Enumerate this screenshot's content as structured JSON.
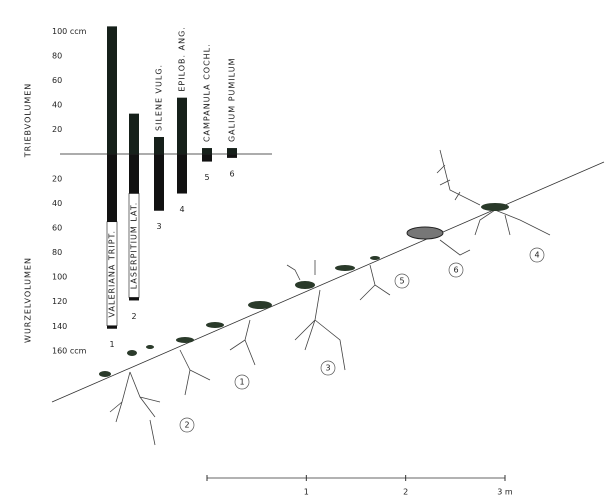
{
  "chart_data": {
    "type": "bar",
    "categories": [
      "VALERIANA TRIPT.",
      "LASERPITIUM LAT.",
      "SILENE VULG.",
      "EPILOB. ANG.",
      "CAMPANULA COCHL.",
      "GALIUM PUMILUM"
    ],
    "category_numbers": [
      "1",
      "2",
      "3",
      "4",
      "5",
      "6"
    ],
    "series": [
      {
        "name": "TRIEBVOLUMEN",
        "color": "#16201a",
        "values": [
          104,
          33,
          14,
          46,
          5,
          5
        ]
      },
      {
        "name": "WURZELVOLUMEN",
        "color": "#111111",
        "values": [
          -142,
          -119,
          -46,
          -32,
          -6,
          -3
        ]
      }
    ],
    "ylim": [
      -165,
      110
    ],
    "yticks": [
      {
        "value": 100,
        "label": "100 ccm"
      },
      80,
      60,
      40,
      20,
      {
        "value": -20,
        "label": "20"
      },
      {
        "value": -40,
        "label": "40"
      },
      {
        "value": -60,
        "label": "60"
      },
      {
        "value": -80,
        "label": "80"
      },
      {
        "value": -100,
        "label": "100"
      },
      {
        "value": -120,
        "label": "120"
      },
      {
        "value": -140,
        "label": "140"
      },
      {
        "value": -160,
        "label": "160 ccm"
      }
    ],
    "scale_bar": {
      "lim": [
        0,
        3
      ],
      "ticks": [
        1,
        2,
        {
          "value": 3,
          "label": "3 m"
        }
      ]
    },
    "site_labels": [
      "2",
      "1",
      "3",
      "5",
      "6",
      "4"
    ]
  }
}
